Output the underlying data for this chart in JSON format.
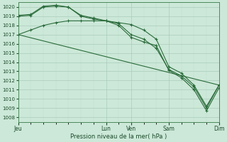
{
  "xlabel": "Pression niveau de la mer( hPa )",
  "bg_color": "#cce8d8",
  "grid_color_major": "#aaccbb",
  "grid_color_minor": "#bbddcc",
  "line_color": "#2a6b3a",
  "ylim": [
    1007.5,
    1020.5
  ],
  "yticks": [
    1008,
    1009,
    1010,
    1011,
    1012,
    1013,
    1014,
    1015,
    1016,
    1017,
    1018,
    1019,
    1020
  ],
  "xtick_labels": [
    "Jeu",
    "Lun",
    "Ven",
    "Sam",
    "Dim"
  ],
  "xtick_positions": [
    0,
    42,
    54,
    72,
    96
  ],
  "xlim": [
    0,
    96
  ],
  "line1_x": [
    0,
    6,
    12,
    18,
    24,
    30,
    36,
    42,
    48,
    54,
    60,
    66,
    72,
    78,
    84,
    90,
    96
  ],
  "line1_y": [
    1017.0,
    1017.5,
    1018.0,
    1018.3,
    1018.5,
    1018.5,
    1018.5,
    1018.5,
    1018.3,
    1018.1,
    1017.5,
    1016.5,
    1013.5,
    1012.8,
    1011.5,
    1009.2,
    1011.5
  ],
  "line2_x": [
    0,
    6,
    12,
    18,
    24,
    30,
    36,
    42,
    48,
    54,
    60,
    66,
    72,
    78,
    84,
    90,
    96
  ],
  "line2_y": [
    1019.0,
    1019.1,
    1020.0,
    1020.1,
    1020.0,
    1019.1,
    1018.8,
    1018.5,
    1018.2,
    1017.0,
    1016.5,
    1015.5,
    1013.2,
    1012.5,
    1011.3,
    1009.0,
    1011.5
  ],
  "line3_x": [
    0,
    6,
    12,
    18,
    24,
    30,
    36,
    42,
    48,
    54,
    60,
    66,
    72,
    78,
    84,
    90,
    96
  ],
  "line3_y": [
    1019.1,
    1019.2,
    1020.1,
    1020.2,
    1020.0,
    1019.0,
    1018.7,
    1018.5,
    1018.0,
    1016.7,
    1016.2,
    1015.8,
    1013.1,
    1012.3,
    1011.0,
    1008.7,
    1011.2
  ],
  "line4_x": [
    0,
    96
  ],
  "line4_y": [
    1017.0,
    1011.5
  ]
}
